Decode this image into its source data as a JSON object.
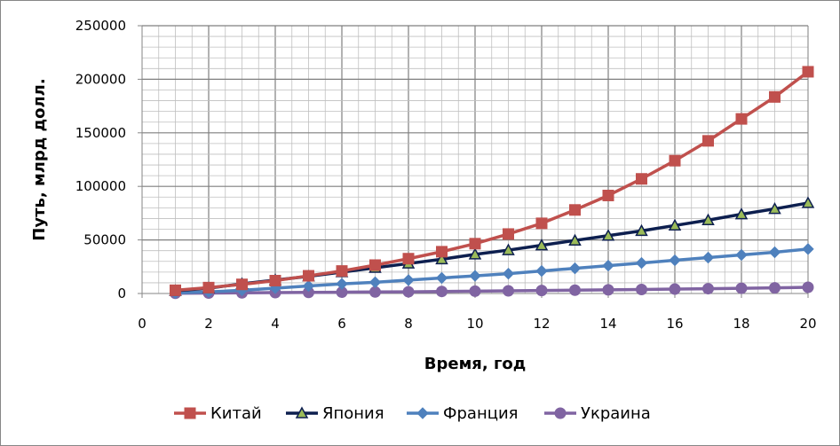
{
  "chart_data": {
    "type": "line",
    "title": "",
    "xlabel": "Время, год",
    "ylabel": "Путь, млрд  долл.",
    "xlim": [
      0,
      20
    ],
    "ylim": [
      0,
      250000
    ],
    "x_ticks": [
      0,
      2,
      4,
      6,
      8,
      10,
      12,
      14,
      16,
      18,
      20
    ],
    "y_ticks": [
      0,
      50000,
      100000,
      150000,
      200000,
      250000
    ],
    "grid": true,
    "legend_position": "bottom",
    "x": [
      1,
      2,
      3,
      4,
      5,
      6,
      7,
      8,
      9,
      10,
      11,
      12,
      13,
      14,
      15,
      16,
      17,
      18,
      19,
      20
    ],
    "series": [
      {
        "name": "Китай",
        "color": "#C0504D",
        "marker": "square",
        "values": [
          3000,
          5500,
          8500,
          12000,
          16500,
          21000,
          26500,
          32500,
          39000,
          46500,
          55500,
          65500,
          78000,
          91500,
          107000,
          124000,
          142500,
          163000,
          183500,
          207000
        ]
      },
      {
        "name": "Япония",
        "color": "#0D1F4F",
        "marker_color": "#9BBB59",
        "marker": "triangle",
        "values": [
          2500,
          5000,
          9000,
          12500,
          16000,
          20000,
          24000,
          28000,
          32000,
          36500,
          40500,
          45000,
          49500,
          54000,
          58500,
          63500,
          68500,
          74000,
          79000,
          84500
        ]
      },
      {
        "name": "Франция",
        "color": "#4F81BD",
        "marker": "diamond",
        "values": [
          500,
          1500,
          3000,
          5000,
          7000,
          9000,
          10500,
          12500,
          14500,
          16500,
          18500,
          21000,
          23500,
          26000,
          28500,
          31000,
          33500,
          36000,
          38500,
          41500
        ]
      },
      {
        "name": "Украина",
        "color": "#8064A2",
        "marker": "circle",
        "values": [
          200,
          400,
          600,
          800,
          1000,
          1200,
          1400,
          1600,
          1900,
          2200,
          2500,
          2800,
          3100,
          3400,
          3700,
          4100,
          4500,
          4900,
          5300,
          5800
        ]
      }
    ]
  }
}
